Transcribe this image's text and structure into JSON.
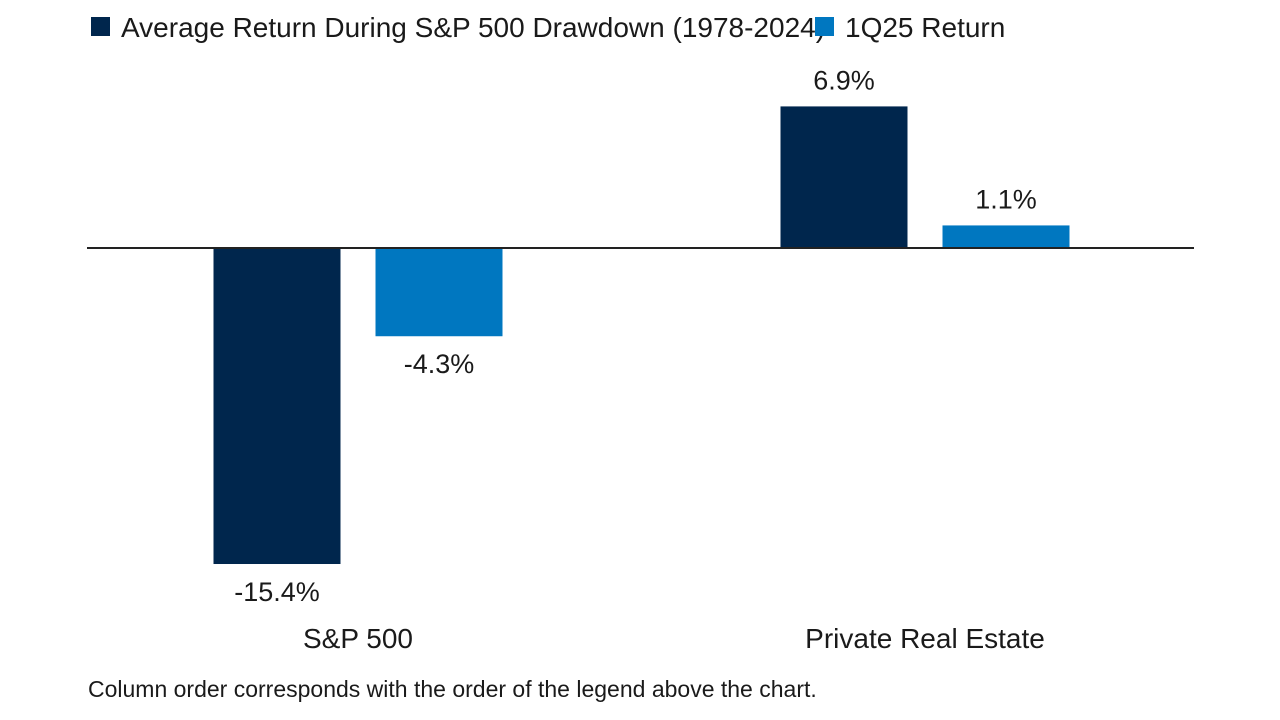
{
  "chart_data": {
    "type": "bar",
    "categories": [
      "S&P 500",
      "Private Real Estate"
    ],
    "series": [
      {
        "name": "Average Return During S&P 500 Drawdown (1978-2024)",
        "color": "#00264d",
        "values": [
          -15.4,
          6.9
        ],
        "labels": [
          "-15.4%",
          "6.9%"
        ]
      },
      {
        "name": "1Q25 Return",
        "color": "#0077c0",
        "values": [
          -4.3,
          1.1
        ],
        "labels": [
          "-4.3%",
          "1.1%"
        ]
      }
    ],
    "legend_position": "top-left",
    "grid": false,
    "value_unit": "%"
  },
  "footnote": "Column order corresponds with the order of the legend above the chart."
}
